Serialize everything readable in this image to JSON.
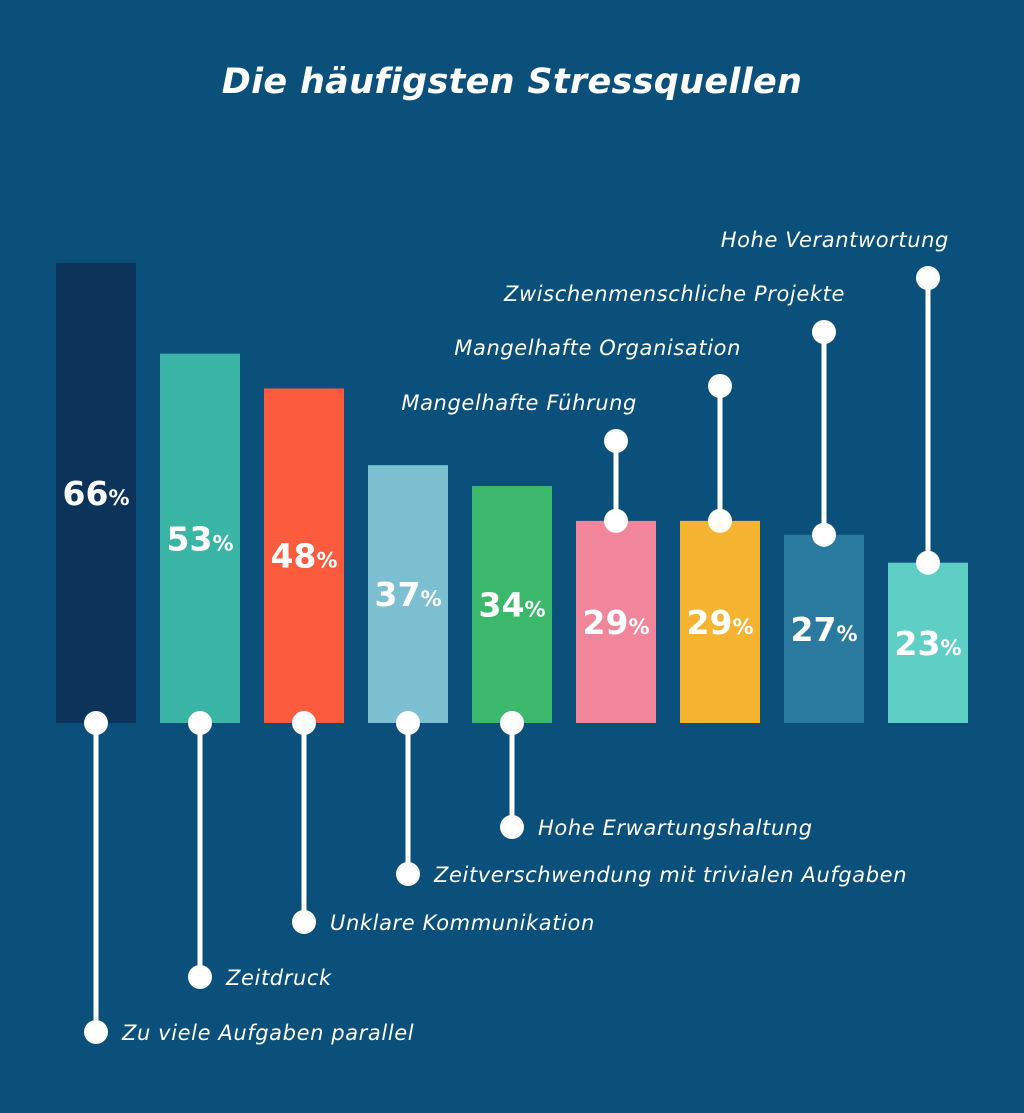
{
  "chart_data": {
    "type": "bar",
    "title": "Die häufigsten Stressquellen",
    "categories": [
      "Zu viele Aufgaben parallel",
      "Zeitdruck",
      "Unklare Kommunikation",
      "Zeitverschwendung mit trivialen Aufgaben",
      "Hohe Erwartungshaltung",
      "Mangelhafte Führung",
      "Mangelhafte Organisation",
      "Zwischenmenschliche Projekte",
      "Hohe Verantwortung"
    ],
    "values": [
      66,
      53,
      48,
      37,
      34,
      29,
      29,
      27,
      23
    ],
    "unit": "%",
    "colors": [
      "#0c3359",
      "#3ab4a5",
      "#fc5b3d",
      "#7cbfd1",
      "#3cb86c",
      "#f0859b",
      "#f4b330",
      "#2a7a9f",
      "#5fcfc5"
    ],
    "label_position": [
      "below",
      "below",
      "below",
      "below",
      "below",
      "above",
      "above",
      "above",
      "above"
    ],
    "ylim": [
      0,
      70
    ],
    "grid": false
  }
}
